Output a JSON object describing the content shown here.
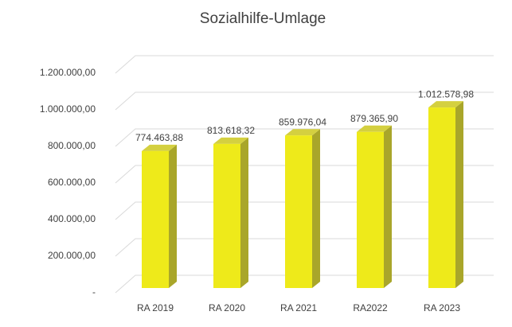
{
  "chart_data": {
    "type": "bar3d",
    "title": "Sozialhilfe-Umlage",
    "categories": [
      "RA 2019",
      "RA 2020",
      "RA 2021",
      "RA2022",
      "RA 2023"
    ],
    "values": [
      774463.88,
      813618.32,
      859976.04,
      879365.9,
      1012578.98
    ],
    "value_labels": [
      "774.463,88",
      "813.618,32",
      "859.976,04",
      "879.365,90",
      "1.012.578,98"
    ],
    "color": "#eeea1a",
    "ylim": [
      0,
      1200000
    ],
    "yticks": [
      {
        "value": 0,
        "label": "-"
      },
      {
        "value": 200000,
        "label": "200.000,00"
      },
      {
        "value": 400000,
        "label": "400.000,00"
      },
      {
        "value": 600000,
        "label": "600.000,00"
      },
      {
        "value": 800000,
        "label": "800.000,00"
      },
      {
        "value": 1000000,
        "label": "1.000.000,00"
      },
      {
        "value": 1200000,
        "label": "1.200.000,00"
      }
    ],
    "grid": true
  }
}
